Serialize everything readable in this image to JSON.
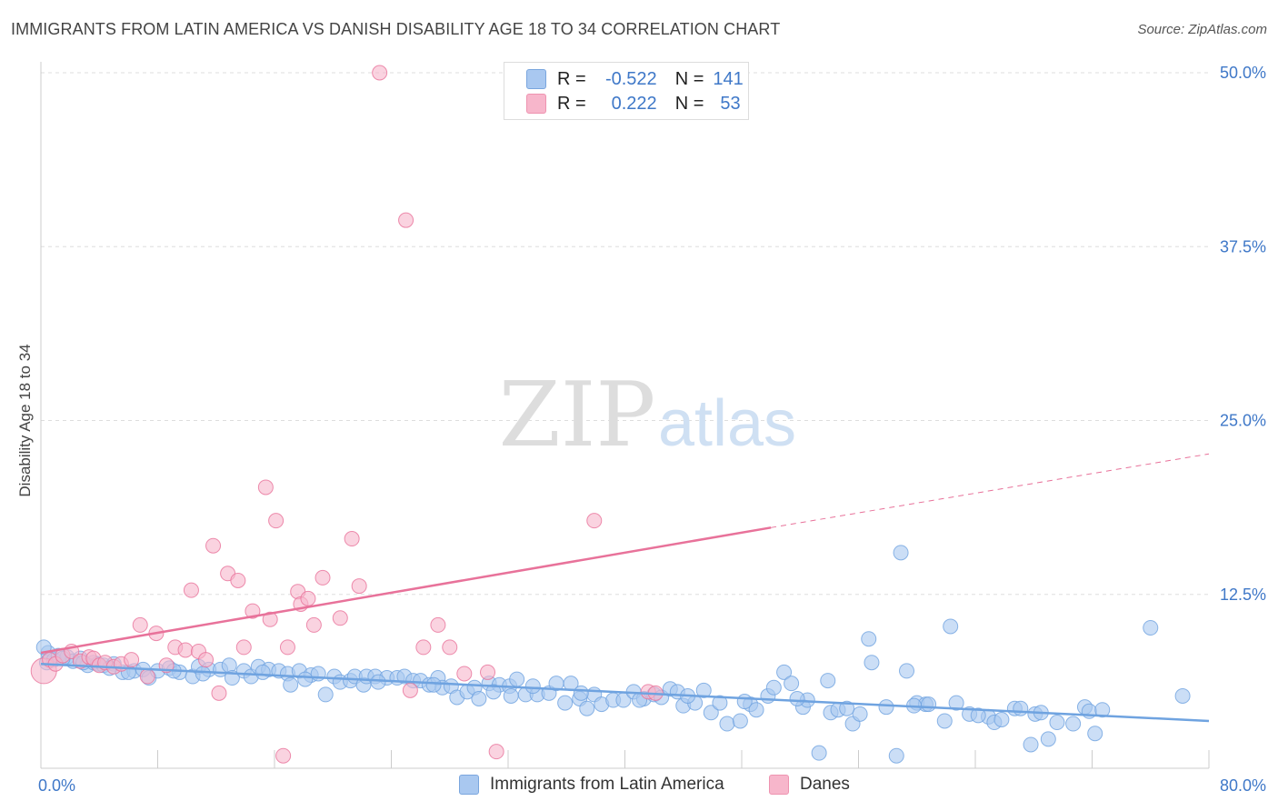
{
  "header": {
    "title": "IMMIGRANTS FROM LATIN AMERICA VS DANISH DISABILITY AGE 18 TO 34 CORRELATION CHART",
    "source": "Source: ZipAtlas.com"
  },
  "watermark": {
    "zip": "ZIP",
    "atlas": "atlas"
  },
  "legend": {
    "rows": [
      {
        "r_label": "R =",
        "r_value": "-0.522",
        "n_label": "N =",
        "n_value": "141",
        "color": "#a9c8f0"
      },
      {
        "r_label": "R =",
        "r_value": "0.222",
        "n_label": "N =",
        "n_value": "53",
        "color": "#f7b6cb"
      }
    ]
  },
  "bottom_legend": [
    {
      "label": "Immigrants from Latin America",
      "color": "#a9c8f0"
    },
    {
      "label": "Danes",
      "color": "#f7b6cb"
    }
  ],
  "chart_data": {
    "type": "scatter",
    "title": "IMMIGRANTS FROM LATIN AMERICA VS DANISH DISABILITY AGE 18 TO 34 CORRELATION CHART",
    "xlabel": "",
    "ylabel": "Disability Age 18 to 34",
    "xlim": [
      0,
      80
    ],
    "ylim": [
      0,
      50
    ],
    "x_tick_labels": [
      "0.0%",
      "80.0%"
    ],
    "y_tick_labels": [
      "12.5%",
      "25.0%",
      "37.5%",
      "50.0%"
    ],
    "y_ticks": [
      12.5,
      25.0,
      37.5,
      50.0
    ],
    "grid": "horizontal dashed",
    "legend_position": "top-center",
    "series": [
      {
        "name": "Immigrants from Latin America",
        "color": "#6fa3e0",
        "fill": "#a9c8f0",
        "points": [
          [
            0.4,
            7.6
          ],
          [
            0.5,
            8.3
          ],
          [
            0.9,
            7.8
          ],
          [
            1.2,
            8.1
          ],
          [
            1.8,
            8.0
          ],
          [
            2.2,
            7.7
          ],
          [
            2.7,
            7.9
          ],
          [
            3.2,
            7.4
          ],
          [
            3.6,
            7.6
          ],
          [
            3.9,
            7.5
          ],
          [
            4.3,
            7.4
          ],
          [
            5.0,
            7.5
          ],
          [
            5.6,
            6.9
          ],
          [
            6.4,
            7.0
          ],
          [
            7.0,
            7.1
          ],
          [
            7.4,
            6.5
          ],
          [
            8.0,
            7.0
          ],
          [
            8.8,
            7.2
          ],
          [
            9.5,
            6.9
          ],
          [
            10.4,
            6.6
          ],
          [
            10.8,
            7.3
          ],
          [
            11.5,
            7.1
          ],
          [
            12.3,
            7.1
          ],
          [
            12.9,
            7.4
          ],
          [
            13.1,
            6.5
          ],
          [
            13.9,
            7.0
          ],
          [
            14.4,
            6.6
          ],
          [
            14.9,
            7.3
          ],
          [
            15.6,
            7.1
          ],
          [
            16.3,
            7.0
          ],
          [
            16.9,
            6.8
          ],
          [
            17.1,
            6.0
          ],
          [
            17.7,
            7.0
          ],
          [
            18.5,
            6.7
          ],
          [
            19.0,
            6.8
          ],
          [
            19.5,
            5.3
          ],
          [
            20.1,
            6.6
          ],
          [
            20.5,
            6.2
          ],
          [
            21.2,
            6.3
          ],
          [
            21.5,
            6.6
          ],
          [
            22.1,
            6.0
          ],
          [
            22.3,
            6.6
          ],
          [
            22.9,
            6.6
          ],
          [
            23.7,
            6.5
          ],
          [
            24.4,
            6.5
          ],
          [
            24.9,
            6.6
          ],
          [
            25.5,
            6.3
          ],
          [
            26.0,
            6.3
          ],
          [
            26.6,
            6.0
          ],
          [
            27.2,
            6.5
          ],
          [
            27.5,
            5.8
          ],
          [
            28.1,
            5.9
          ],
          [
            28.5,
            5.1
          ],
          [
            29.2,
            5.5
          ],
          [
            29.7,
            5.8
          ],
          [
            30.0,
            5.0
          ],
          [
            30.7,
            6.1
          ],
          [
            31.4,
            6.0
          ],
          [
            32.1,
            5.9
          ],
          [
            32.6,
            6.4
          ],
          [
            32.2,
            5.2
          ],
          [
            33.2,
            5.3
          ],
          [
            34.0,
            5.3
          ],
          [
            34.8,
            5.4
          ],
          [
            35.3,
            6.1
          ],
          [
            35.9,
            4.7
          ],
          [
            36.3,
            6.1
          ],
          [
            36.9,
            5.0
          ],
          [
            37.4,
            4.3
          ],
          [
            37.9,
            5.3
          ],
          [
            38.4,
            4.6
          ],
          [
            39.2,
            4.9
          ],
          [
            39.9,
            4.9
          ],
          [
            40.6,
            5.5
          ],
          [
            41.3,
            5.0
          ],
          [
            42.0,
            5.3
          ],
          [
            42.5,
            5.1
          ],
          [
            43.1,
            5.7
          ],
          [
            43.6,
            5.5
          ],
          [
            44.0,
            4.5
          ],
          [
            44.8,
            4.7
          ],
          [
            45.4,
            5.6
          ],
          [
            45.9,
            4.0
          ],
          [
            46.5,
            4.7
          ],
          [
            47.0,
            3.2
          ],
          [
            47.9,
            3.4
          ],
          [
            48.6,
            4.6
          ],
          [
            49.0,
            4.2
          ],
          [
            49.8,
            5.2
          ],
          [
            50.2,
            5.8
          ],
          [
            50.9,
            6.9
          ],
          [
            51.4,
            6.1
          ],
          [
            52.2,
            4.4
          ],
          [
            52.5,
            4.9
          ],
          [
            53.3,
            1.1
          ],
          [
            54.1,
            4.0
          ],
          [
            54.6,
            4.2
          ],
          [
            55.6,
            3.2
          ],
          [
            56.1,
            3.9
          ],
          [
            53.9,
            6.3
          ],
          [
            56.7,
            9.3
          ],
          [
            56.9,
            7.6
          ],
          [
            57.9,
            4.4
          ],
          [
            58.6,
            0.9
          ],
          [
            58.9,
            15.5
          ],
          [
            59.3,
            7.0
          ],
          [
            60.0,
            4.7
          ],
          [
            60.6,
            4.6
          ],
          [
            60.8,
            4.6
          ],
          [
            61.9,
            3.4
          ],
          [
            62.3,
            10.2
          ],
          [
            62.7,
            4.7
          ],
          [
            63.6,
            3.9
          ],
          [
            64.9,
            3.7
          ],
          [
            65.3,
            3.3
          ],
          [
            65.8,
            3.5
          ],
          [
            66.7,
            4.3
          ],
          [
            67.1,
            4.3
          ],
          [
            67.8,
            1.7
          ],
          [
            68.1,
            3.9
          ],
          [
            69.0,
            2.1
          ],
          [
            69.6,
            3.3
          ],
          [
            70.7,
            3.2
          ],
          [
            71.5,
            4.4
          ],
          [
            71.8,
            4.1
          ],
          [
            72.2,
            2.5
          ],
          [
            72.7,
            4.2
          ],
          [
            76.0,
            10.1
          ],
          [
            78.2,
            5.2
          ],
          [
            0.2,
            8.7
          ],
          [
            1.5,
            7.9
          ],
          [
            2.9,
            7.6
          ],
          [
            4.7,
            7.2
          ],
          [
            6.0,
            6.9
          ],
          [
            9.1,
            7.0
          ],
          [
            11.1,
            6.8
          ],
          [
            15.2,
            6.9
          ],
          [
            18.1,
            6.4
          ],
          [
            23.1,
            6.2
          ],
          [
            26.9,
            6.0
          ],
          [
            31.0,
            5.5
          ],
          [
            33.7,
            5.9
          ],
          [
            37.0,
            5.4
          ],
          [
            41.0,
            4.9
          ],
          [
            44.3,
            5.2
          ],
          [
            48.2,
            4.8
          ],
          [
            51.8,
            5.0
          ],
          [
            55.2,
            4.3
          ],
          [
            59.8,
            4.5
          ],
          [
            64.2,
            3.8
          ],
          [
            68.5,
            4.0
          ]
        ]
      },
      {
        "name": "Danes",
        "color": "#e8729a",
        "fill": "#f7b6cb",
        "points": [
          [
            0.2,
            7.0
          ],
          [
            0.6,
            7.8
          ],
          [
            1.0,
            7.5
          ],
          [
            1.5,
            8.1
          ],
          [
            2.1,
            8.4
          ],
          [
            2.7,
            7.7
          ],
          [
            3.3,
            8.0
          ],
          [
            3.6,
            7.9
          ],
          [
            4.0,
            7.4
          ],
          [
            4.4,
            7.6
          ],
          [
            5.0,
            7.3
          ],
          [
            5.5,
            7.5
          ],
          [
            6.2,
            7.8
          ],
          [
            6.8,
            10.3
          ],
          [
            7.3,
            6.6
          ],
          [
            7.9,
            9.7
          ],
          [
            8.6,
            7.4
          ],
          [
            9.2,
            8.7
          ],
          [
            9.9,
            8.5
          ],
          [
            10.3,
            12.8
          ],
          [
            10.8,
            8.4
          ],
          [
            11.3,
            7.8
          ],
          [
            11.8,
            16.0
          ],
          [
            12.2,
            5.4
          ],
          [
            12.8,
            14.0
          ],
          [
            13.5,
            13.5
          ],
          [
            13.9,
            8.7
          ],
          [
            14.5,
            11.3
          ],
          [
            15.4,
            20.2
          ],
          [
            15.7,
            10.7
          ],
          [
            16.1,
            17.8
          ],
          [
            16.6,
            0.9
          ],
          [
            16.9,
            8.7
          ],
          [
            17.6,
            12.7
          ],
          [
            17.8,
            11.8
          ],
          [
            18.3,
            12.2
          ],
          [
            18.7,
            10.3
          ],
          [
            19.3,
            13.7
          ],
          [
            20.5,
            10.8
          ],
          [
            21.3,
            16.5
          ],
          [
            21.8,
            13.1
          ],
          [
            23.2,
            50.0
          ],
          [
            25.0,
            39.4
          ],
          [
            25.3,
            5.6
          ],
          [
            26.2,
            8.7
          ],
          [
            27.2,
            10.3
          ],
          [
            28.0,
            8.7
          ],
          [
            29.0,
            6.8
          ],
          [
            30.6,
            6.9
          ],
          [
            31.2,
            1.2
          ],
          [
            37.9,
            17.8
          ],
          [
            41.6,
            5.5
          ],
          [
            42.1,
            5.4
          ]
        ]
      }
    ],
    "trend_lines": [
      {
        "series": "Immigrants from Latin America",
        "x": [
          0,
          80
        ],
        "y": [
          7.5,
          3.4
        ],
        "style": "solid"
      },
      {
        "series": "Danes",
        "x": [
          0,
          50
        ],
        "y": [
          8.3,
          17.3
        ],
        "style": "solid"
      },
      {
        "series": "Danes",
        "x": [
          50,
          80
        ],
        "y": [
          17.3,
          22.6
        ],
        "style": "dashed"
      }
    ]
  }
}
